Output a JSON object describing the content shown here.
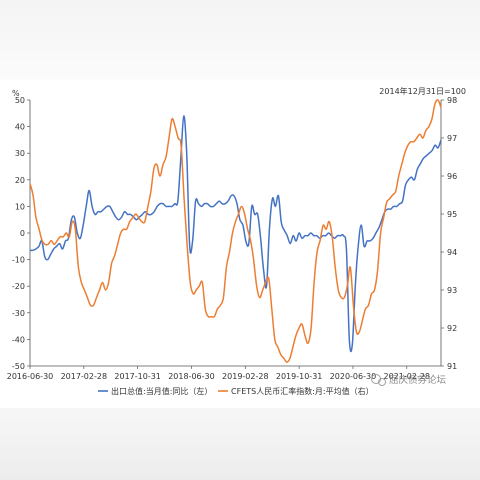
{
  "chart_data": {
    "type": "line",
    "left_unit": "%",
    "right_unit": "2014年12月31日=100",
    "x_ticks": [
      "2016-06-30",
      "2017-02-28",
      "2017-10-31",
      "2018-06-30",
      "2019-02-28",
      "2019-10-31",
      "2020-06-30",
      "2021-02-28"
    ],
    "left_axis": {
      "min": -50,
      "max": 50,
      "ticks": [
        50,
        40,
        30,
        20,
        10,
        0,
        -10,
        -20,
        -30,
        -40,
        -50
      ]
    },
    "right_axis": {
      "min": 91,
      "max": 98,
      "ticks": [
        98,
        97,
        96,
        95,
        94,
        93,
        92,
        91
      ]
    },
    "grid": false,
    "legend_position": "bottom",
    "series": [
      {
        "name": "出口总值:当月值:同比（左）",
        "axis": "left",
        "color": "#4472c4",
        "values": [
          -6.5,
          -6.5,
          -6,
          -5,
          -3,
          -9,
          -10,
          -8,
          -6,
          -5,
          -4,
          -6,
          -3,
          -2,
          5,
          6,
          0,
          -2,
          3,
          10,
          16,
          10,
          7,
          8,
          8,
          9,
          10,
          10,
          8,
          6,
          5,
          6,
          8,
          7,
          7,
          6,
          5,
          6,
          7,
          8,
          7,
          7,
          8,
          10,
          11,
          11,
          10,
          10,
          10,
          11,
          12,
          28,
          44,
          30,
          -5,
          -3,
          12,
          11,
          10,
          11,
          11,
          10,
          10,
          11,
          12,
          11,
          11,
          12,
          14,
          14,
          11,
          5,
          3,
          -3,
          -4,
          10,
          7,
          7,
          -2,
          -14,
          -20,
          2,
          13,
          10,
          14,
          4,
          1,
          -1,
          -4,
          -1,
          -3,
          0,
          -2,
          -1,
          -1,
          0,
          -1,
          -1,
          -2,
          -1,
          -1,
          0,
          -1,
          -2,
          -1,
          -1,
          -1,
          -6,
          -40,
          -42,
          -20,
          -5,
          3,
          -5,
          -3,
          -3,
          -2,
          0,
          2,
          5,
          8,
          9,
          9,
          10,
          10,
          11,
          12,
          18,
          20,
          21,
          20,
          24,
          26,
          28,
          29,
          30,
          31,
          33,
          32,
          35
        ],
        "marks": []
      },
      {
        "name": "CFETS人民币汇率指数:月:平均值（右）",
        "axis": "right",
        "color": "#ed7d31",
        "values": [
          95.8,
          95.5,
          94.9,
          94.6,
          94.3,
          94.2,
          94.2,
          94.3,
          94.2,
          94.3,
          94.4,
          94.4,
          94.5,
          94.4,
          94.8,
          94.6,
          93.6,
          93.2,
          93.0,
          92.8,
          92.6,
          92.6,
          92.8,
          93.0,
          93.2,
          93.0,
          93.2,
          93.7,
          93.9,
          94.2,
          94.5,
          94.6,
          94.6,
          94.8,
          94.9,
          95.0,
          94.9,
          94.8,
          94.8,
          95.2,
          95.6,
          96.2,
          96.3,
          96.0,
          96.3,
          96.5,
          97.0,
          97.5,
          97.3,
          97.0,
          96.8,
          95.4,
          94.2,
          93.2,
          92.9,
          93.0,
          93.1,
          93.2,
          92.5,
          92.3,
          92.3,
          92.3,
          92.5,
          92.6,
          92.8,
          93.6,
          94.0,
          94.5,
          94.8,
          95.0,
          95.2,
          95.0,
          94.6,
          94.3,
          93.8,
          93.1,
          92.8,
          93.0,
          93.2,
          93.3,
          92.5,
          91.7,
          91.5,
          91.3,
          91.2,
          91.1,
          91.2,
          91.5,
          91.8,
          92.0,
          92.1,
          91.8,
          91.6,
          92.0,
          93.2,
          94.0,
          94.3,
          94.7,
          94.6,
          94.8,
          94.4,
          93.6,
          93.0,
          92.8,
          92.8,
          93.1,
          93.6,
          92.6,
          91.9,
          91.9,
          92.2,
          92.5,
          92.6,
          92.9,
          93.0,
          93.5,
          94.5,
          94.9,
          95.3,
          95.4,
          95.5,
          95.6,
          96.0,
          96.3,
          96.6,
          96.8,
          96.9,
          96.9,
          97.0,
          97.1,
          97.0,
          97.2,
          97.3,
          97.5,
          97.9,
          98.0,
          97.8
        ]
      }
    ]
  },
  "watermark": "屈庆债券论坛"
}
